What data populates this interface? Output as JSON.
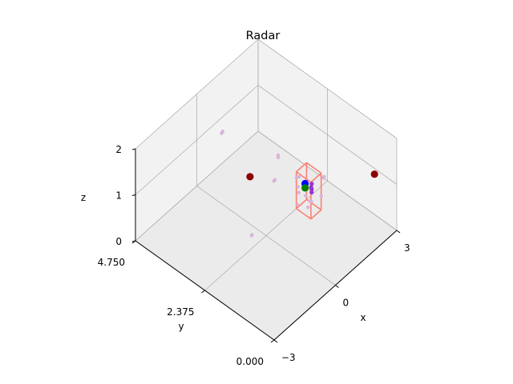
{
  "chart_data": {
    "type": "scatter",
    "projection": "3d",
    "title": "Radar",
    "xlabel": "x",
    "ylabel": "y",
    "zlabel": "z",
    "xlim": [
      -3,
      3
    ],
    "ylim": [
      0,
      4.75
    ],
    "zlim": [
      0,
      2
    ],
    "x_ticks": [
      {
        "value": -3,
        "label": "−3"
      },
      {
        "value": 0,
        "label": "0"
      },
      {
        "value": 3,
        "label": "3"
      }
    ],
    "y_ticks": [
      {
        "value": 0,
        "label": "0.000"
      },
      {
        "value": 2.375,
        "label": "2.375"
      },
      {
        "value": 4.75,
        "label": "4.750"
      }
    ],
    "z_ticks": [
      {
        "value": 0,
        "label": "0"
      },
      {
        "value": 1,
        "label": "1"
      },
      {
        "value": 2,
        "label": "2"
      }
    ],
    "grid": true,
    "colors": {
      "cloud": "#d8b4d8",
      "cluster": "#9932cc",
      "box": "#fa8072",
      "dark_red": "#8b0000",
      "blue": "#0000ff",
      "green": "#008000",
      "pane_light": "#f2f2f2",
      "pane_floor": "#ebebeb",
      "grid": "#b0b0b0"
    },
    "series": [
      {
        "role": "cloud",
        "color": "#d8b4d8",
        "points": [
          [
            0.74,
            4.42,
            1.0
          ],
          [
            0.84,
            4.45,
            0.99
          ],
          [
            2.42,
            3.03,
            0.0
          ],
          [
            2.5,
            3.0,
            0.0
          ],
          [
            -0.32,
            2.65,
            0.0
          ],
          [
            -0.28,
            2.66,
            0.0
          ],
          [
            1.32,
            2.89,
            0.99
          ],
          [
            1.24,
            2.83,
            1.0
          ],
          [
            -0.21,
            1.93,
            1.5
          ],
          [
            -0.3,
            1.9,
            1.52
          ],
          [
            0.57,
            1.25,
            1.3
          ],
          [
            0.52,
            1.28,
            1.32
          ],
          [
            0.68,
            0.86,
            1.7
          ],
          [
            0.6,
            0.83,
            1.72
          ],
          [
            -0.49,
            0.95,
            1.51
          ],
          [
            -0.11,
            1.18,
            1.52
          ],
          [
            -0.13,
            0.73,
            1.54
          ],
          [
            0.22,
            1.21,
            1.47
          ],
          [
            0.19,
            1.42,
            1.42
          ],
          [
            -0.1,
            0.81,
            1.5
          ],
          [
            0.22,
            0.64,
            1.56
          ],
          [
            0.07,
            1.07,
            1.43
          ],
          [
            -0.24,
            0.77,
            1.44
          ]
        ]
      },
      {
        "role": "cluster",
        "color": "#9932cc",
        "points": [
          [
            -0.19,
            0.68,
            1.85
          ],
          [
            -0.13,
            0.74,
            1.85
          ],
          [
            -0.27,
            0.63,
            1.84
          ],
          [
            -0.02,
            0.8,
            1.85
          ]
        ]
      },
      {
        "role": "dark_red",
        "color": "#8b0000",
        "points": [
          [
            2.24,
            0.23,
            1.42
          ],
          [
            1.02,
            3.64,
            0.3
          ]
        ]
      },
      {
        "role": "blue",
        "color": "#0000ff",
        "points": [
          [
            0.4,
            1.32,
            1.45
          ]
        ]
      },
      {
        "role": "green",
        "color": "#008000",
        "points": [
          [
            0.2,
            1.18,
            1.5
          ]
        ]
      }
    ],
    "box": {
      "color": "#fa8072",
      "x": [
        -0.2,
        0.3
      ],
      "y": [
        0.7,
        1.2
      ],
      "z": [
        1.2,
        2.0
      ]
    }
  }
}
